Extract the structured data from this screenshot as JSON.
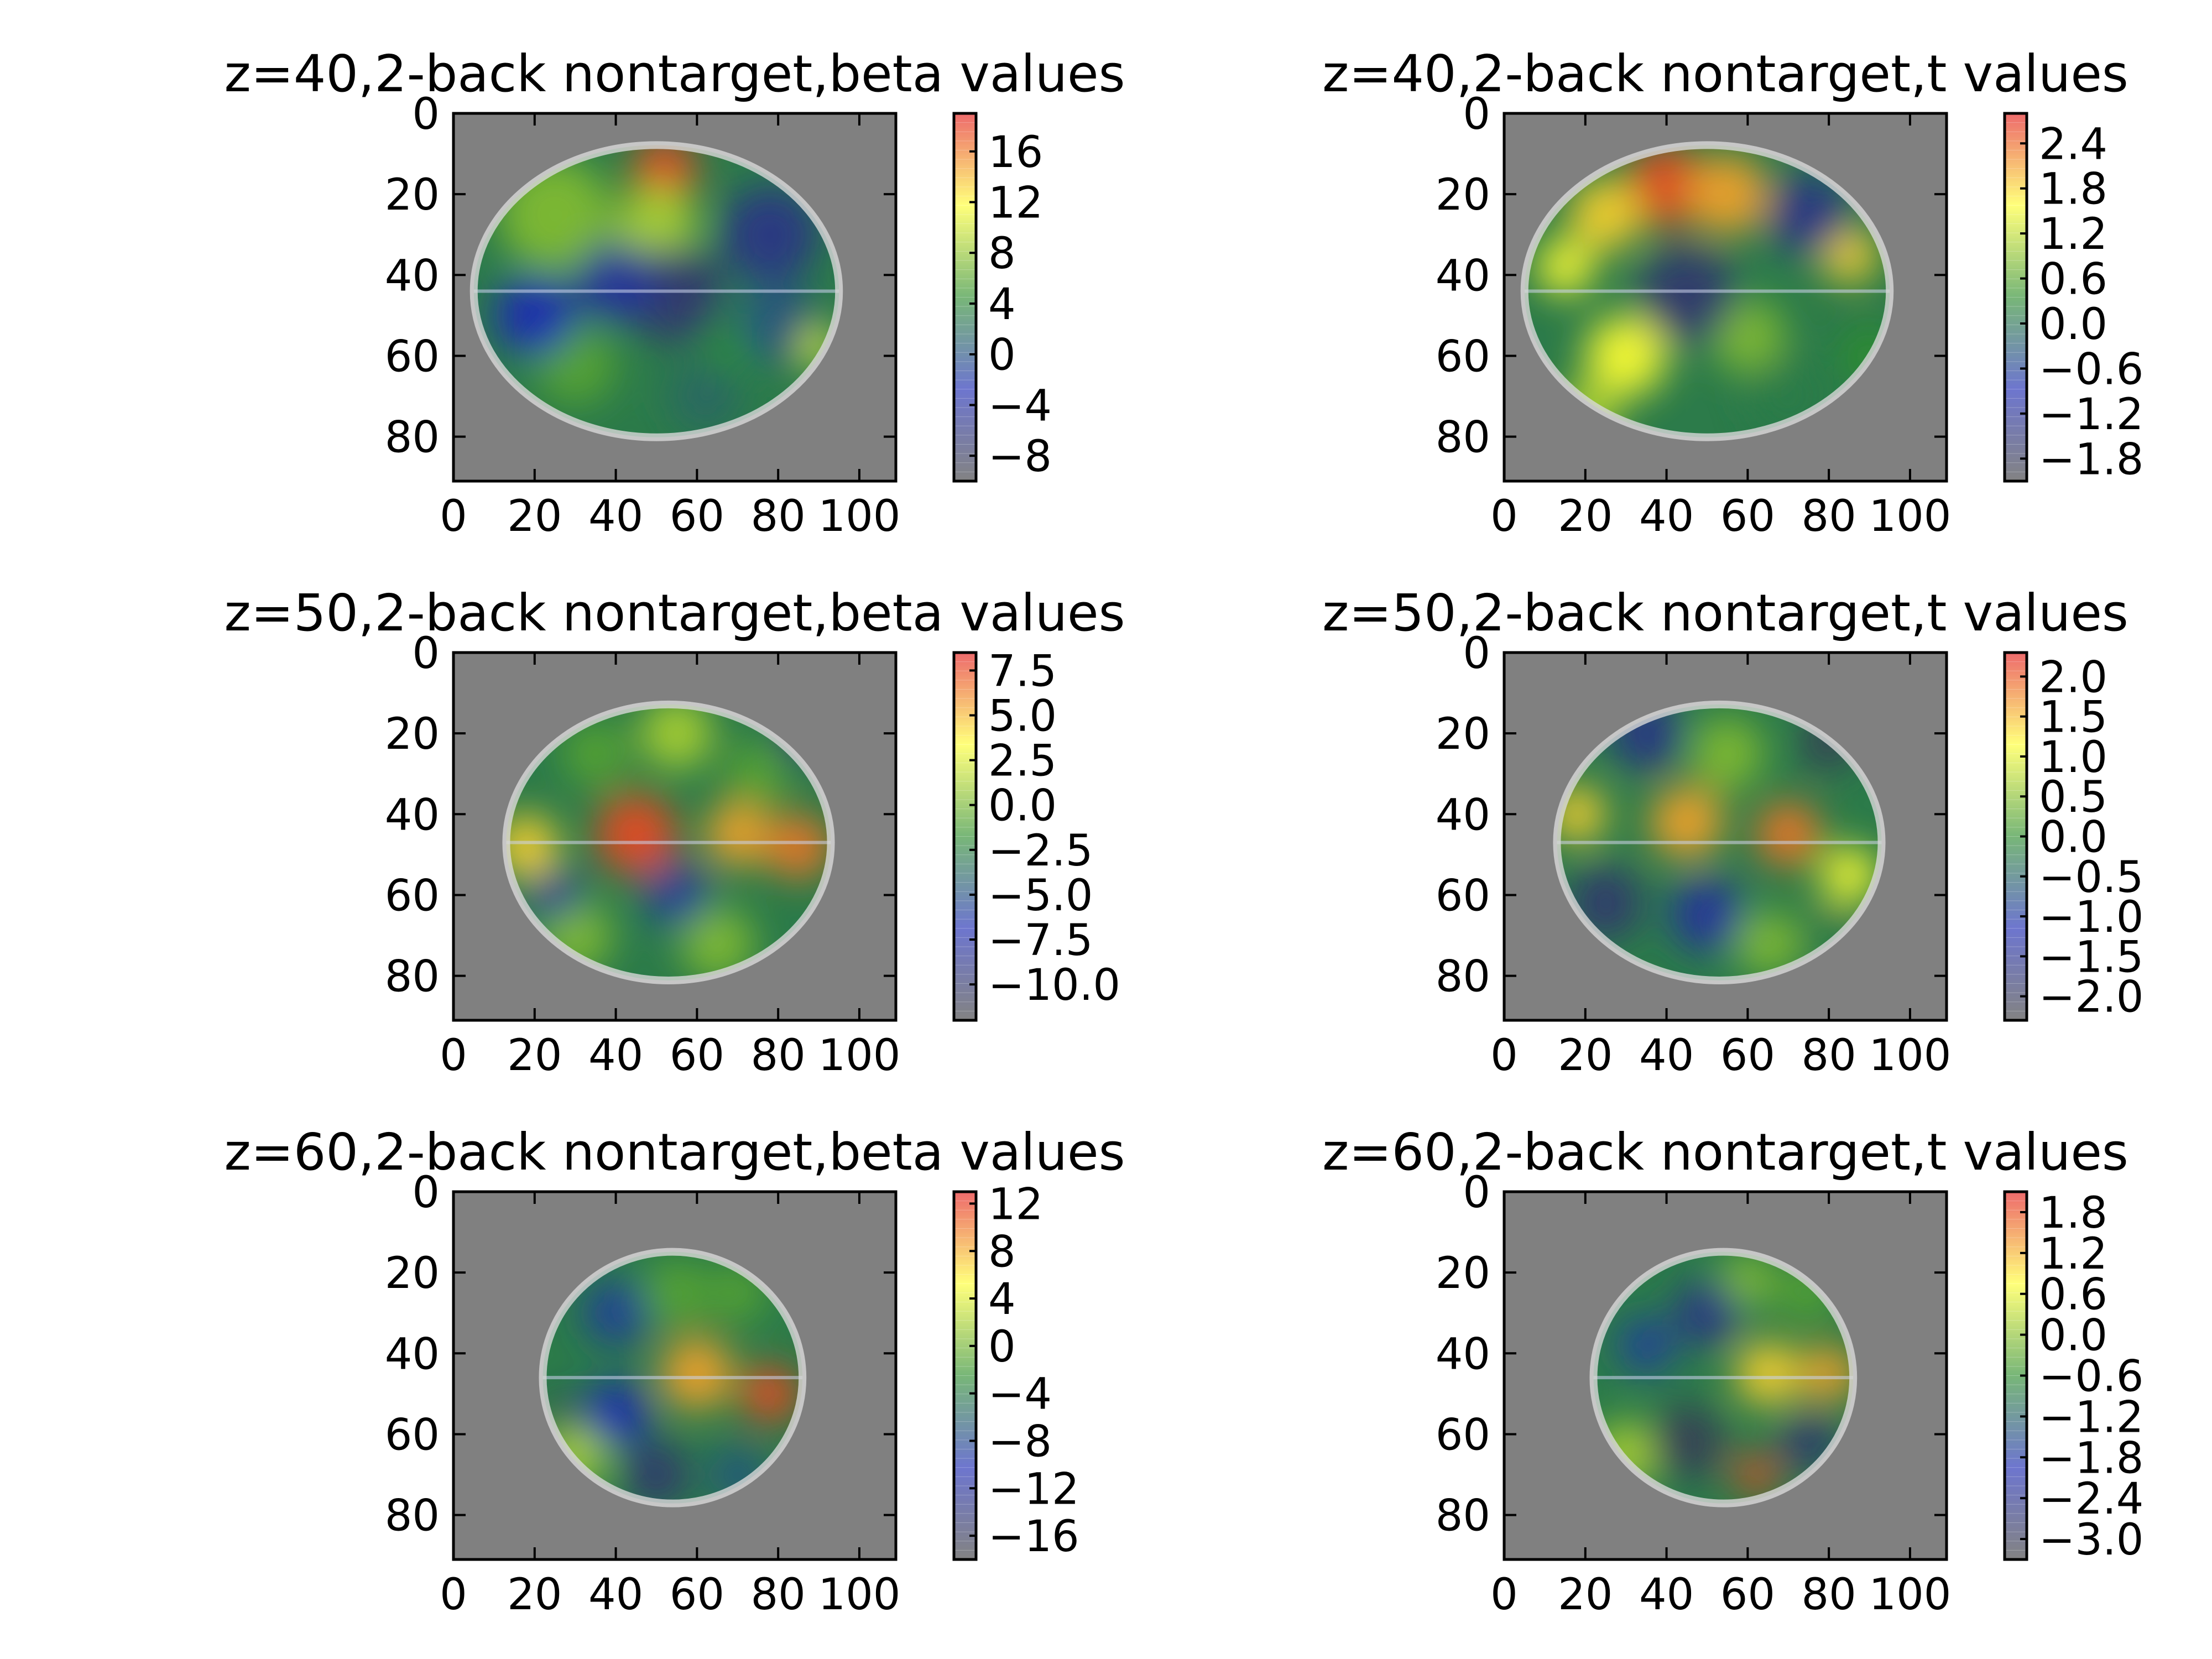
{
  "figure": {
    "background": "#ffffff",
    "brain_background": "#808080",
    "colormap": [
      "#404040",
      "#1f2cb4",
      "#2f8f2f",
      "#ffff33",
      "#e41a1c"
    ]
  },
  "chart_data": [
    {
      "type": "heatmap",
      "title": "z=40,2-back nontarget,beta values",
      "slice_z": 40,
      "condition": "2-back nontarget",
      "measure": "beta values",
      "xlim": [
        0,
        109
      ],
      "ylim": [
        91,
        0
      ],
      "x_ticks": [
        "0",
        "20",
        "40",
        "60",
        "80",
        "100"
      ],
      "y_ticks": [
        "0",
        "20",
        "40",
        "60",
        "80"
      ],
      "colorbar": {
        "range": [
          -10,
          19
        ],
        "ticks": [
          "16",
          "12",
          "8",
          "4",
          "0",
          "−4",
          "−8"
        ]
      },
      "brain": {
        "cx": 50,
        "cy": 44,
        "rx": 45,
        "ry": 36
      },
      "blobs": [
        {
          "x": 52,
          "y": 14,
          "v": 0.95,
          "r": 8
        },
        {
          "x": 25,
          "y": 25,
          "v": 0.6,
          "r": 14
        },
        {
          "x": 50,
          "y": 28,
          "v": 0.65,
          "r": 10
        },
        {
          "x": 30,
          "y": 62,
          "v": 0.55,
          "r": 10
        },
        {
          "x": 70,
          "y": 55,
          "v": 0.5,
          "r": 10
        },
        {
          "x": 80,
          "y": 52,
          "v": 0.35,
          "r": 10
        },
        {
          "x": 78,
          "y": 30,
          "v": 0.15,
          "r": 12
        },
        {
          "x": 55,
          "y": 45,
          "v": 0.1,
          "r": 12
        },
        {
          "x": 40,
          "y": 42,
          "v": 0.2,
          "r": 10
        },
        {
          "x": 20,
          "y": 50,
          "v": 0.25,
          "r": 10
        },
        {
          "x": 62,
          "y": 70,
          "v": 0.4,
          "r": 9
        },
        {
          "x": 90,
          "y": 58,
          "v": 0.7,
          "r": 5
        }
      ]
    },
    {
      "type": "heatmap",
      "title": "z=40,2-back nontarget,t values",
      "slice_z": 40,
      "condition": "2-back nontarget",
      "measure": "t values",
      "xlim": [
        0,
        109
      ],
      "ylim": [
        91,
        0
      ],
      "x_ticks": [
        "0",
        "20",
        "40",
        "60",
        "80",
        "100"
      ],
      "y_ticks": [
        "0",
        "20",
        "40",
        "60",
        "80"
      ],
      "colorbar": {
        "range": [
          -2.1,
          2.8
        ],
        "ticks": [
          "2.4",
          "1.8",
          "1.2",
          "0.6",
          "0.0",
          "−0.6",
          "−1.2",
          "−1.8"
        ]
      },
      "brain": {
        "cx": 50,
        "cy": 44,
        "rx": 45,
        "ry": 36
      },
      "blobs": [
        {
          "x": 40,
          "y": 18,
          "v": 0.95,
          "r": 10
        },
        {
          "x": 55,
          "y": 20,
          "v": 0.85,
          "r": 10
        },
        {
          "x": 25,
          "y": 25,
          "v": 0.8,
          "r": 9
        },
        {
          "x": 15,
          "y": 38,
          "v": 0.75,
          "r": 7
        },
        {
          "x": 85,
          "y": 35,
          "v": 0.8,
          "r": 7
        },
        {
          "x": 30,
          "y": 60,
          "v": 0.75,
          "r": 10
        },
        {
          "x": 60,
          "y": 55,
          "v": 0.6,
          "r": 9
        },
        {
          "x": 45,
          "y": 45,
          "v": 0.1,
          "r": 12
        },
        {
          "x": 75,
          "y": 25,
          "v": 0.15,
          "r": 10
        },
        {
          "x": 70,
          "y": 70,
          "v": 0.45,
          "r": 10
        },
        {
          "x": 20,
          "y": 75,
          "v": 0.65,
          "r": 8
        },
        {
          "x": 90,
          "y": 60,
          "v": 0.5,
          "r": 7
        }
      ]
    },
    {
      "type": "heatmap",
      "title": "z=50,2-back nontarget,beta values",
      "slice_z": 50,
      "condition": "2-back nontarget",
      "measure": "beta values",
      "xlim": [
        0,
        109
      ],
      "ylim": [
        91,
        0
      ],
      "x_ticks": [
        "0",
        "20",
        "40",
        "60",
        "80",
        "100"
      ],
      "y_ticks": [
        "0",
        "20",
        "40",
        "60",
        "80"
      ],
      "colorbar": {
        "range": [
          -12,
          8.5
        ],
        "ticks": [
          "7.5",
          "5.0",
          "2.5",
          "0.0",
          "−2.5",
          "−5.0",
          "−7.5",
          "−10.0"
        ]
      },
      "brain": {
        "cx": 53,
        "cy": 47,
        "rx": 40,
        "ry": 34
      },
      "blobs": [
        {
          "x": 45,
          "y": 45,
          "v": 0.95,
          "r": 10
        },
        {
          "x": 85,
          "y": 48,
          "v": 0.9,
          "r": 8
        },
        {
          "x": 70,
          "y": 45,
          "v": 0.85,
          "r": 8
        },
        {
          "x": 18,
          "y": 48,
          "v": 0.8,
          "r": 8
        },
        {
          "x": 55,
          "y": 20,
          "v": 0.65,
          "r": 9
        },
        {
          "x": 35,
          "y": 25,
          "v": 0.55,
          "r": 8
        },
        {
          "x": 75,
          "y": 30,
          "v": 0.55,
          "r": 8
        },
        {
          "x": 30,
          "y": 70,
          "v": 0.6,
          "r": 9
        },
        {
          "x": 65,
          "y": 72,
          "v": 0.6,
          "r": 9
        },
        {
          "x": 85,
          "y": 22,
          "v": 0.1,
          "r": 6
        },
        {
          "x": 55,
          "y": 60,
          "v": 0.3,
          "r": 8
        },
        {
          "x": 25,
          "y": 60,
          "v": 0.2,
          "r": 6
        }
      ]
    },
    {
      "type": "heatmap",
      "title": "z=50,2-back nontarget,t values",
      "slice_z": 50,
      "condition": "2-back nontarget",
      "measure": "t values",
      "xlim": [
        0,
        109
      ],
      "ylim": [
        91,
        0
      ],
      "x_ticks": [
        "0",
        "20",
        "40",
        "60",
        "80",
        "100"
      ],
      "y_ticks": [
        "0",
        "20",
        "40",
        "60",
        "80"
      ],
      "colorbar": {
        "range": [
          -2.3,
          2.3
        ],
        "ticks": [
          "2.0",
          "1.5",
          "1.0",
          "0.5",
          "0.0",
          "−0.5",
          "−1.0",
          "−1.5",
          "−2.0"
        ]
      },
      "brain": {
        "cx": 53,
        "cy": 47,
        "rx": 40,
        "ry": 34
      },
      "blobs": [
        {
          "x": 45,
          "y": 42,
          "v": 0.85,
          "r": 9
        },
        {
          "x": 70,
          "y": 45,
          "v": 0.9,
          "r": 8
        },
        {
          "x": 18,
          "y": 40,
          "v": 0.8,
          "r": 7
        },
        {
          "x": 85,
          "y": 55,
          "v": 0.75,
          "r": 7
        },
        {
          "x": 55,
          "y": 25,
          "v": 0.6,
          "r": 9
        },
        {
          "x": 35,
          "y": 20,
          "v": 0.15,
          "r": 9
        },
        {
          "x": 80,
          "y": 22,
          "v": 0.05,
          "r": 7
        },
        {
          "x": 25,
          "y": 62,
          "v": 0.1,
          "r": 9
        },
        {
          "x": 50,
          "y": 65,
          "v": 0.2,
          "r": 9
        },
        {
          "x": 65,
          "y": 72,
          "v": 0.6,
          "r": 8
        },
        {
          "x": 80,
          "y": 70,
          "v": 0.45,
          "r": 7
        }
      ]
    },
    {
      "type": "heatmap",
      "title": "z=60,2-back nontarget,beta values",
      "slice_z": 60,
      "condition": "2-back nontarget",
      "measure": "beta values",
      "xlim": [
        0,
        109
      ],
      "ylim": [
        91,
        0
      ],
      "x_ticks": [
        "0",
        "20",
        "40",
        "60",
        "80",
        "100"
      ],
      "y_ticks": [
        "0",
        "20",
        "40",
        "60",
        "80"
      ],
      "colorbar": {
        "range": [
          -18,
          13
        ],
        "ticks": [
          "12",
          "8",
          "4",
          "0",
          "−4",
          "−8",
          "−12",
          "−16"
        ]
      },
      "brain": {
        "cx": 54,
        "cy": 46,
        "rx": 32,
        "ry": 31
      },
      "blobs": [
        {
          "x": 60,
          "y": 45,
          "v": 0.85,
          "r": 9
        },
        {
          "x": 78,
          "y": 50,
          "v": 0.95,
          "r": 7
        },
        {
          "x": 30,
          "y": 65,
          "v": 0.65,
          "r": 8
        },
        {
          "x": 55,
          "y": 25,
          "v": 0.55,
          "r": 8
        },
        {
          "x": 70,
          "y": 25,
          "v": 0.55,
          "r": 7
        },
        {
          "x": 40,
          "y": 30,
          "v": 0.3,
          "r": 8
        },
        {
          "x": 50,
          "y": 70,
          "v": 0.1,
          "r": 8
        },
        {
          "x": 27,
          "y": 55,
          "v": 0.05,
          "r": 4
        },
        {
          "x": 70,
          "y": 70,
          "v": 0.35,
          "r": 7
        },
        {
          "x": 40,
          "y": 55,
          "v": 0.25,
          "r": 8
        }
      ]
    },
    {
      "type": "heatmap",
      "title": "z=60,2-back nontarget,t values",
      "slice_z": 60,
      "condition": "2-back nontarget",
      "measure": "t values",
      "xlim": [
        0,
        109
      ],
      "ylim": [
        91,
        0
      ],
      "x_ticks": [
        "0",
        "20",
        "40",
        "60",
        "80",
        "100"
      ],
      "y_ticks": [
        "0",
        "20",
        "40",
        "60",
        "80"
      ],
      "colorbar": {
        "range": [
          -3.3,
          2.1
        ],
        "ticks": [
          "1.8",
          "1.2",
          "0.6",
          "0.0",
          "−0.6",
          "−1.2",
          "−1.8",
          "−2.4",
          "−3.0"
        ]
      },
      "brain": {
        "cx": 54,
        "cy": 46,
        "rx": 32,
        "ry": 31
      },
      "blobs": [
        {
          "x": 65,
          "y": 45,
          "v": 0.8,
          "r": 8
        },
        {
          "x": 80,
          "y": 45,
          "v": 0.85,
          "r": 7
        },
        {
          "x": 62,
          "y": 70,
          "v": 0.95,
          "r": 5
        },
        {
          "x": 30,
          "y": 65,
          "v": 0.65,
          "r": 8
        },
        {
          "x": 60,
          "y": 22,
          "v": 0.6,
          "r": 7
        },
        {
          "x": 75,
          "y": 25,
          "v": 0.55,
          "r": 7
        },
        {
          "x": 45,
          "y": 62,
          "v": 0.05,
          "r": 9
        },
        {
          "x": 50,
          "y": 30,
          "v": 0.15,
          "r": 8
        },
        {
          "x": 35,
          "y": 38,
          "v": 0.3,
          "r": 7
        },
        {
          "x": 75,
          "y": 62,
          "v": 0.1,
          "r": 7
        }
      ]
    }
  ]
}
